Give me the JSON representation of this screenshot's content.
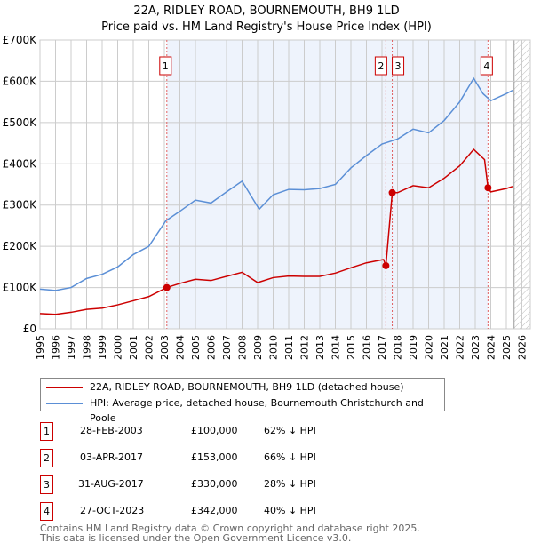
{
  "title": "22A, RIDLEY ROAD, BOURNEMOUTH, BH9 1LD",
  "subtitle": "Price paid vs. HM Land Registry's House Price Index (HPI)",
  "chart_data": {
    "type": "line",
    "xlim": [
      1995,
      2026
    ],
    "ylim": [
      0,
      700000
    ],
    "yticks": [
      {
        "v": 0,
        "label": "£0"
      },
      {
        "v": 100000,
        "label": "£100K"
      },
      {
        "v": 200000,
        "label": "£200K"
      },
      {
        "v": 300000,
        "label": "£300K"
      },
      {
        "v": 400000,
        "label": "£400K"
      },
      {
        "v": 500000,
        "label": "£500K"
      },
      {
        "v": 600000,
        "label": "£600K"
      },
      {
        "v": 700000,
        "label": "£700K"
      }
    ],
    "xticks": [
      "1995",
      "1996",
      "1997",
      "1998",
      "1999",
      "2000",
      "2001",
      "2002",
      "2003",
      "2004",
      "2005",
      "2006",
      "2007",
      "2008",
      "2009",
      "2010",
      "2011",
      "2012",
      "2013",
      "2014",
      "2015",
      "2016",
      "2017",
      "2018",
      "2019",
      "2020",
      "2021",
      "2022",
      "2023",
      "2024",
      "2025",
      "2026"
    ],
    "colors": {
      "price": "#cc0000",
      "hpi": "#5b8fd6",
      "shade": "#eef3fc"
    },
    "series": [
      {
        "name": "22A, RIDLEY ROAD, BOURNEMOUTH, BH9 1LD (detached house)",
        "x": [
          1995,
          1996,
          1997,
          1998,
          1999,
          2000,
          2001,
          2002,
          2003.16,
          2004,
          2005,
          2006,
          2007,
          2008,
          2009,
          2010,
          2011,
          2012,
          2013,
          2014,
          2015,
          2016,
          2017.1,
          2017.25,
          2017.66,
          2018,
          2019,
          2020,
          2021,
          2022,
          2022.9,
          2023.6,
          2023.82,
          2024,
          2025,
          2025.4
        ],
        "values": [
          37000,
          35000,
          40000,
          47000,
          50000,
          58000,
          68000,
          78000,
          100000,
          110000,
          120000,
          117000,
          127000,
          137000,
          112000,
          124000,
          128000,
          127000,
          127000,
          135000,
          148000,
          160000,
          168000,
          153000,
          330000,
          330000,
          347000,
          342000,
          365000,
          395000,
          435000,
          410000,
          342000,
          332000,
          340000,
          345000
        ]
      },
      {
        "name": "HPI: Average price, detached house, Bournemouth Christchurch and Poole",
        "x": [
          1995,
          1996,
          1997,
          1998,
          1999,
          2000,
          2001,
          2002,
          2003.1,
          2004,
          2005,
          2006,
          2007,
          2008,
          2009.1,
          2010,
          2011,
          2012,
          2013,
          2014,
          2015,
          2016,
          2017,
          2018,
          2019,
          2020,
          2021,
          2022,
          2022.9,
          2023.5,
          2024,
          2025,
          2025.4
        ],
        "values": [
          96000,
          93000,
          100000,
          122000,
          132000,
          150000,
          180000,
          200000,
          262000,
          285000,
          312000,
          305000,
          332000,
          358000,
          290000,
          325000,
          338000,
          337000,
          340000,
          350000,
          390000,
          420000,
          448000,
          460000,
          484000,
          475000,
          505000,
          550000,
          607000,
          570000,
          553000,
          570000,
          578000
        ]
      }
    ],
    "sales": [
      {
        "n": "1",
        "x": 2003.16,
        "v": 100000,
        "date": "28-FEB-2003",
        "price": "£100,000",
        "hpi": "62% ↓ HPI"
      },
      {
        "n": "2",
        "x": 2017.25,
        "v": 153000,
        "date": "03-APR-2017",
        "price": "£153,000",
        "hpi": "66% ↓ HPI"
      },
      {
        "n": "3",
        "x": 2017.66,
        "v": 330000,
        "date": "31-AUG-2017",
        "price": "£330,000",
        "hpi": "28% ↓ HPI"
      },
      {
        "n": "4",
        "x": 2023.82,
        "v": 342000,
        "date": "27-OCT-2023",
        "price": "£342,000",
        "hpi": "40% ↓ HPI"
      }
    ]
  },
  "footer": [
    "Contains HM Land Registry data © Crown copyright and database right 2025.",
    "This data is licensed under the Open Government Licence v3.0."
  ]
}
